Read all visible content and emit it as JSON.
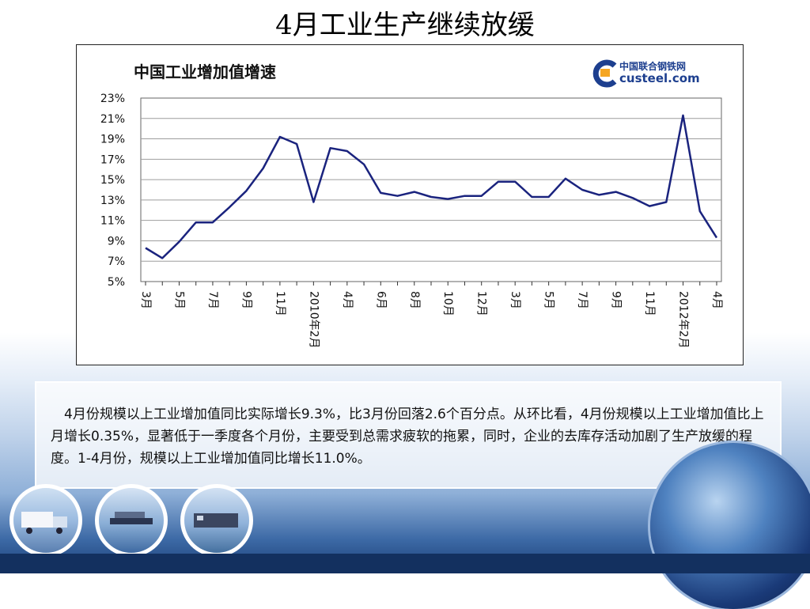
{
  "page_title": "4月工业生产继续放缓",
  "chart_title": "中国工业增加值增速",
  "logo": {
    "cn": "中国联合钢铁网",
    "en": "custeel.com"
  },
  "description": "4月份规模以上工业增加值同比实际增长9.3%，比3月份回落2.6个百分点。从环比看，4月份规模以上工业增加值比上月增长0.35%，显著低于一季度各个月份，主要受到总需求疲软的拖累，同时，企业的去库存活动加剧了生产放缓的程度。1-4月份，规模以上工业增加值同比增长11.0%。",
  "colors": {
    "line": "#1a237e",
    "grid": "#9e9e9e",
    "text_box_border": "#ffffff"
  },
  "chart_data": {
    "type": "line",
    "title": "中国工业增加值增速",
    "ylim": [
      5,
      23
    ],
    "yticks": [
      "5%",
      "7%",
      "9%",
      "11%",
      "13%",
      "15%",
      "17%",
      "19%",
      "21%",
      "23%"
    ],
    "grid": true,
    "x_labels": [
      {
        "index": 0,
        "label": "3月"
      },
      {
        "index": 2,
        "label": "5月"
      },
      {
        "index": 4,
        "label": "7月"
      },
      {
        "index": 6,
        "label": "9月"
      },
      {
        "index": 8,
        "label": "11月"
      },
      {
        "index": 10,
        "label": "2010年2月"
      },
      {
        "index": 12,
        "label": "4月"
      },
      {
        "index": 14,
        "label": "6月"
      },
      {
        "index": 16,
        "label": "8月"
      },
      {
        "index": 18,
        "label": "10月"
      },
      {
        "index": 20,
        "label": "12月"
      },
      {
        "index": 22,
        "label": "3月"
      },
      {
        "index": 24,
        "label": "5月"
      },
      {
        "index": 26,
        "label": "7月"
      },
      {
        "index": 28,
        "label": "9月"
      },
      {
        "index": 30,
        "label": "11月"
      },
      {
        "index": 32,
        "label": "2012年2月"
      },
      {
        "index": 34,
        "label": "4月"
      }
    ],
    "series": [
      {
        "values": [
          8.3,
          7.3,
          8.9,
          10.8,
          10.8,
          12.3,
          13.9,
          16.1,
          19.2,
          18.5,
          12.8,
          18.1,
          17.8,
          16.5,
          13.7,
          13.4,
          13.8,
          13.3,
          13.1,
          13.4,
          13.4,
          14.8,
          14.8,
          13.3,
          13.3,
          15.1,
          14.0,
          13.5,
          13.8,
          13.2,
          12.4,
          12.8,
          21.3,
          11.9,
          9.3
        ]
      }
    ]
  }
}
